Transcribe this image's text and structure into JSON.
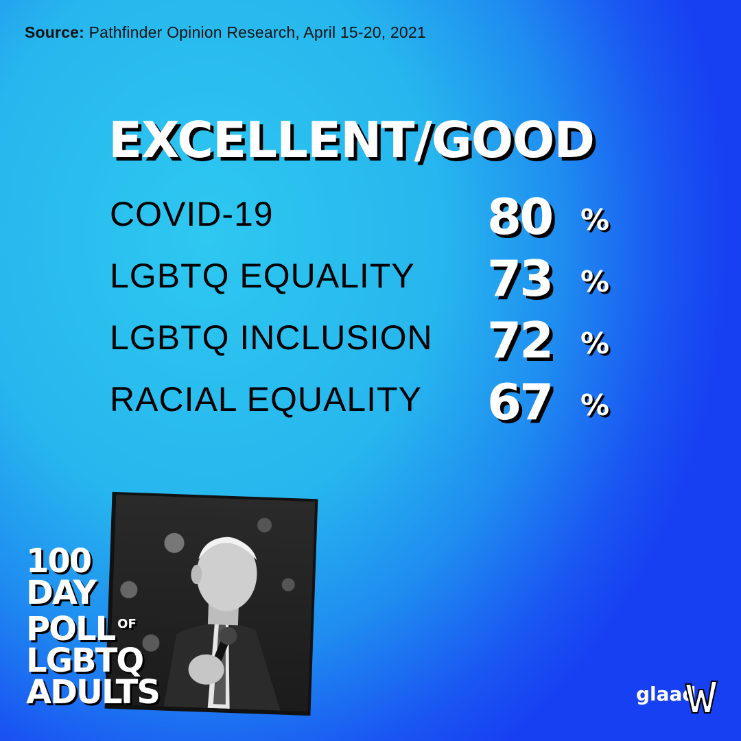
{
  "source": {
    "label": "Source:",
    "text": "Pathfinder Opinion Research, April 15-20, 2021"
  },
  "headline": "EXCELLENT/GOOD",
  "rows": [
    {
      "label": "COVID-19",
      "value": "80",
      "unit": "%"
    },
    {
      "label": "LGBTQ EQUALITY",
      "value": "73",
      "unit": "%"
    },
    {
      "label": "LGBTQ INCLUSION",
      "value": "72",
      "unit": "%"
    },
    {
      "label": "RACIAL EQUALITY",
      "value": "67",
      "unit": "%"
    }
  ],
  "promo": {
    "line1": "100",
    "line2": "DAY",
    "line3": "POLL",
    "of": "OF",
    "line4": "LGBTQ",
    "line5": "ADULTS"
  },
  "brand": {
    "name": "glaad",
    "icon": "glaad-logo-icon"
  },
  "colors": {
    "background_light": "#2ec8f0",
    "background_dark": "#1740f2",
    "text_dark": "#000000",
    "text_light": "#ffffff"
  }
}
